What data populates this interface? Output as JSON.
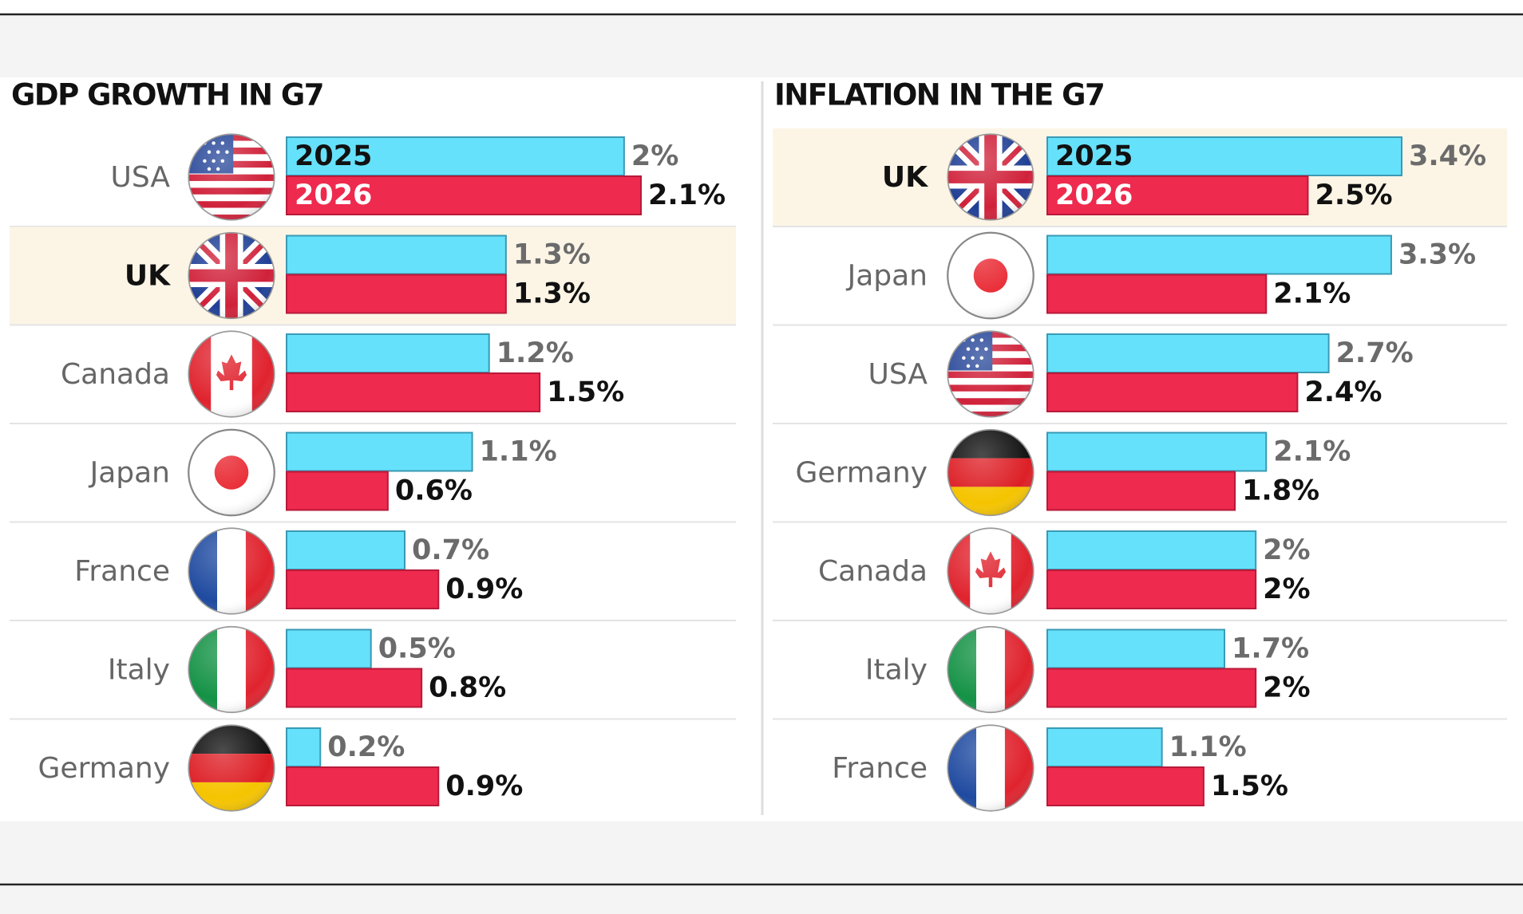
{
  "chart_data": [
    {
      "type": "bar",
      "orientation": "horizontal",
      "title": "GDP GROWTH IN G7",
      "categories": [
        "USA",
        "UK",
        "Canada",
        "Japan",
        "France",
        "Italy",
        "Germany"
      ],
      "highlight_category": "UK",
      "series": [
        {
          "name": "2025",
          "color": "#66e1fb",
          "values": [
            2,
            1.3,
            1.2,
            1.1,
            0.7,
            0.5,
            0.2
          ],
          "value_labels": [
            "2%",
            "1.3%",
            "1.2%",
            "1.1%",
            "0.7%",
            "0.5%",
            "0.2%"
          ]
        },
        {
          "name": "2026",
          "color": "#ee2a4e",
          "values": [
            2.1,
            1.3,
            1.5,
            0.6,
            0.9,
            0.8,
            0.9
          ],
          "value_labels": [
            "2.1%",
            "1.3%",
            "1.5%",
            "0.6%",
            "0.9%",
            "0.8%",
            "0.9%"
          ]
        }
      ]
    },
    {
      "type": "bar",
      "orientation": "horizontal",
      "title": "INFLATION IN THE G7",
      "categories": [
        "UK",
        "Japan",
        "USA",
        "Germany",
        "Canada",
        "Italy",
        "France"
      ],
      "highlight_category": "UK",
      "series": [
        {
          "name": "2025",
          "color": "#66e1fb",
          "values": [
            3.4,
            3.3,
            2.7,
            2.1,
            2,
            1.7,
            1.1
          ],
          "value_labels": [
            "3.4%",
            "3.3%",
            "2.7%",
            "2.1%",
            "2%",
            "1.7%",
            "1.1%"
          ]
        },
        {
          "name": "2026",
          "color": "#ee2a4e",
          "values": [
            2.5,
            2.1,
            2.4,
            1.8,
            2,
            2,
            1.5
          ],
          "value_labels": [
            "2.5%",
            "2.1%",
            "2.4%",
            "1.8%",
            "2%",
            "2%",
            "1.5%"
          ]
        }
      ]
    }
  ]
}
